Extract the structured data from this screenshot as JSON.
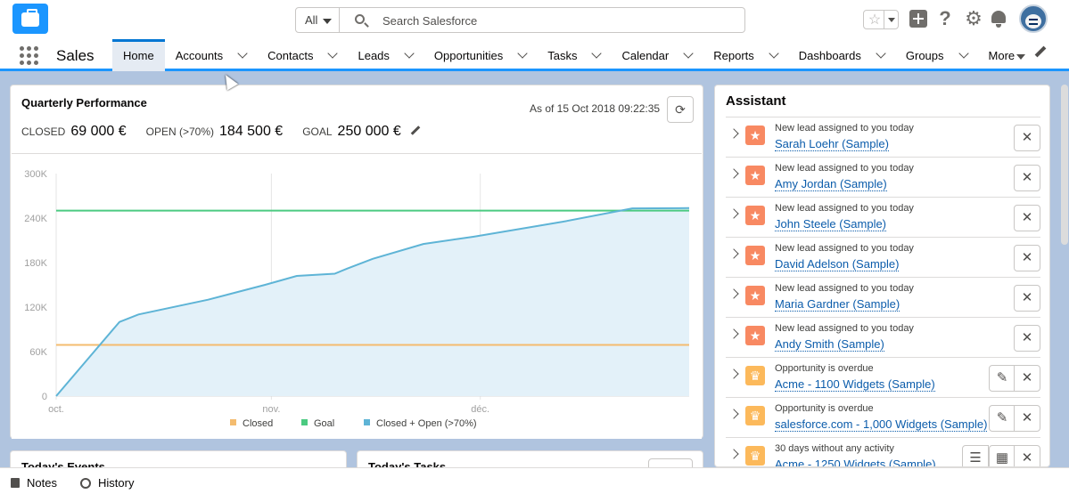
{
  "header": {
    "search_scope": "All",
    "search_placeholder": "Search Salesforce"
  },
  "nav": {
    "app_name": "Sales",
    "items": [
      {
        "label": "Home",
        "active": true,
        "has_menu": false
      },
      {
        "label": "Accounts",
        "active": false,
        "has_menu": true
      },
      {
        "label": "Contacts",
        "active": false,
        "has_menu": true
      },
      {
        "label": "Leads",
        "active": false,
        "has_menu": true
      },
      {
        "label": "Opportunities",
        "active": false,
        "has_menu": true
      },
      {
        "label": "Tasks",
        "active": false,
        "has_menu": true
      },
      {
        "label": "Calendar",
        "active": false,
        "has_menu": true
      },
      {
        "label": "Reports",
        "active": false,
        "has_menu": true
      },
      {
        "label": "Dashboards",
        "active": false,
        "has_menu": true
      },
      {
        "label": "Groups",
        "active": false,
        "has_menu": true
      }
    ],
    "more_label": "More"
  },
  "performance": {
    "title": "Quarterly Performance",
    "as_of": "As of 15 Oct 2018 09:22:35",
    "closed_label": "CLOSED",
    "closed_value": "69 000 €",
    "open_label": "OPEN (>70%)",
    "open_value": "184 500 €",
    "goal_label": "GOAL",
    "goal_value": "250 000 €"
  },
  "chart_data": {
    "type": "line",
    "title": "",
    "y_ticks": [
      "0",
      "60K",
      "120K",
      "180K",
      "240K",
      "300K"
    ],
    "ylim": [
      0,
      300000
    ],
    "x_ticks": [
      "oct.",
      "nov.",
      "déc."
    ],
    "x": [
      0,
      0.1,
      0.13,
      0.24,
      0.33,
      0.38,
      0.44,
      0.46,
      0.5,
      0.58,
      0.66,
      0.8,
      0.91,
      1.0
    ],
    "grid": "vertical",
    "legend_position": "bottom",
    "series": [
      {
        "name": "Closed",
        "color": "#f4bc6f",
        "values": [
          69000,
          69000,
          69000,
          69000,
          69000,
          69000,
          69000,
          69000,
          69000,
          69000,
          69000,
          69000,
          69000,
          69000
        ]
      },
      {
        "name": "Goal",
        "color": "#4bca81",
        "values": [
          250000,
          250000,
          250000,
          250000,
          250000,
          250000,
          250000,
          250000,
          250000,
          250000,
          250000,
          250000,
          250000,
          250000
        ]
      },
      {
        "name": "Closed + Open (>70%)",
        "color": "#5eb4d6",
        "values": [
          0,
          100000,
          110000,
          130000,
          150000,
          162000,
          165000,
          172000,
          185000,
          205000,
          215000,
          235000,
          253000,
          253500
        ]
      }
    ]
  },
  "assistant": {
    "title": "Assistant",
    "items": [
      {
        "type": "lead",
        "subtitle": "New lead assigned to you today",
        "link": "Sarah Loehr (Sample)",
        "actions": [
          "close"
        ]
      },
      {
        "type": "lead",
        "subtitle": "New lead assigned to you today",
        "link": "Amy Jordan (Sample)",
        "actions": [
          "close"
        ]
      },
      {
        "type": "lead",
        "subtitle": "New lead assigned to you today",
        "link": "John Steele (Sample)",
        "actions": [
          "close"
        ]
      },
      {
        "type": "lead",
        "subtitle": "New lead assigned to you today",
        "link": "David Adelson (Sample)",
        "actions": [
          "close"
        ]
      },
      {
        "type": "lead",
        "subtitle": "New lead assigned to you today",
        "link": "Maria Gardner (Sample)",
        "actions": [
          "close"
        ]
      },
      {
        "type": "lead",
        "subtitle": "New lead assigned to you today",
        "link": "Andy Smith (Sample)",
        "actions": [
          "close"
        ]
      },
      {
        "type": "opportunity",
        "subtitle": "Opportunity is overdue",
        "link": "Acme - 1100 Widgets (Sample)",
        "actions": [
          "edit",
          "close"
        ]
      },
      {
        "type": "opportunity",
        "subtitle": "Opportunity is overdue",
        "link": "salesforce.com - 1,000 Widgets (Sample)",
        "actions": [
          "edit",
          "close"
        ]
      },
      {
        "type": "opportunity",
        "subtitle": "30 days without any activity",
        "link": "Acme - 1250 Widgets (Sample)",
        "actions": [
          "task",
          "event",
          "close"
        ]
      }
    ]
  },
  "events": {
    "title": "Today's Events"
  },
  "tasks": {
    "title": "Today's Tasks"
  },
  "utility": {
    "notes": "Notes",
    "history": "History"
  }
}
